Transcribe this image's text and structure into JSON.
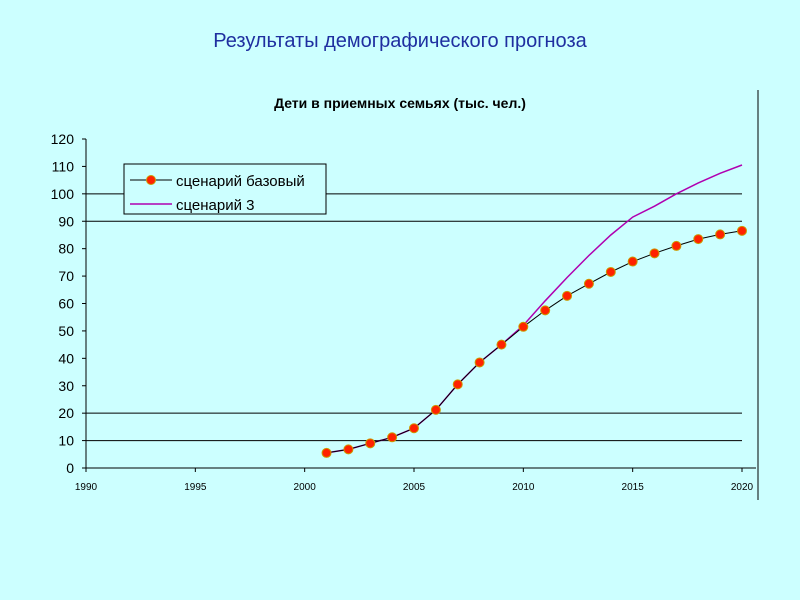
{
  "slide": {
    "title": "Результаты демографического прогноза"
  },
  "chart_data": {
    "type": "line",
    "title": "Дети в приемных семьях (тыс. чел.)",
    "xlabel": "",
    "ylabel": "",
    "xlim": [
      1990,
      2020
    ],
    "ylim": [
      0,
      120
    ],
    "x_ticks": [
      "1990",
      "1995",
      "2000",
      "2005",
      "2010",
      "2015",
      "2020"
    ],
    "y_ticks": [
      "0",
      "10",
      "20",
      "30",
      "40",
      "50",
      "60",
      "70",
      "80",
      "90",
      "100",
      "110",
      "120"
    ],
    "grid": "horizontal",
    "legend_position": "top-left",
    "x": [
      2001,
      2002,
      2003,
      2004,
      2005,
      2006,
      2007,
      2008,
      2009,
      2010,
      2011,
      2012,
      2013,
      2014,
      2015,
      2016,
      2017,
      2018,
      2019,
      2020
    ],
    "series": [
      {
        "name": "сценарий базовый",
        "color": "#000000",
        "marker_color": "#ff2200",
        "values": [
          5.5,
          6.8,
          9,
          11.2,
          14.5,
          21.2,
          30.5,
          38.5,
          45,
          51.5,
          57.5,
          62.8,
          67.2,
          71.5,
          75.3,
          78.3,
          81,
          83.5,
          85.2,
          86.5
        ]
      },
      {
        "name": "сценарий 3",
        "color": "#b000b0",
        "values": [
          5.5,
          6.8,
          9,
          11.2,
          14.5,
          21.2,
          30.5,
          38.5,
          45,
          52,
          61,
          69.5,
          77.5,
          85,
          91.5,
          95.5,
          100,
          104,
          107.5,
          110.5
        ]
      }
    ]
  }
}
